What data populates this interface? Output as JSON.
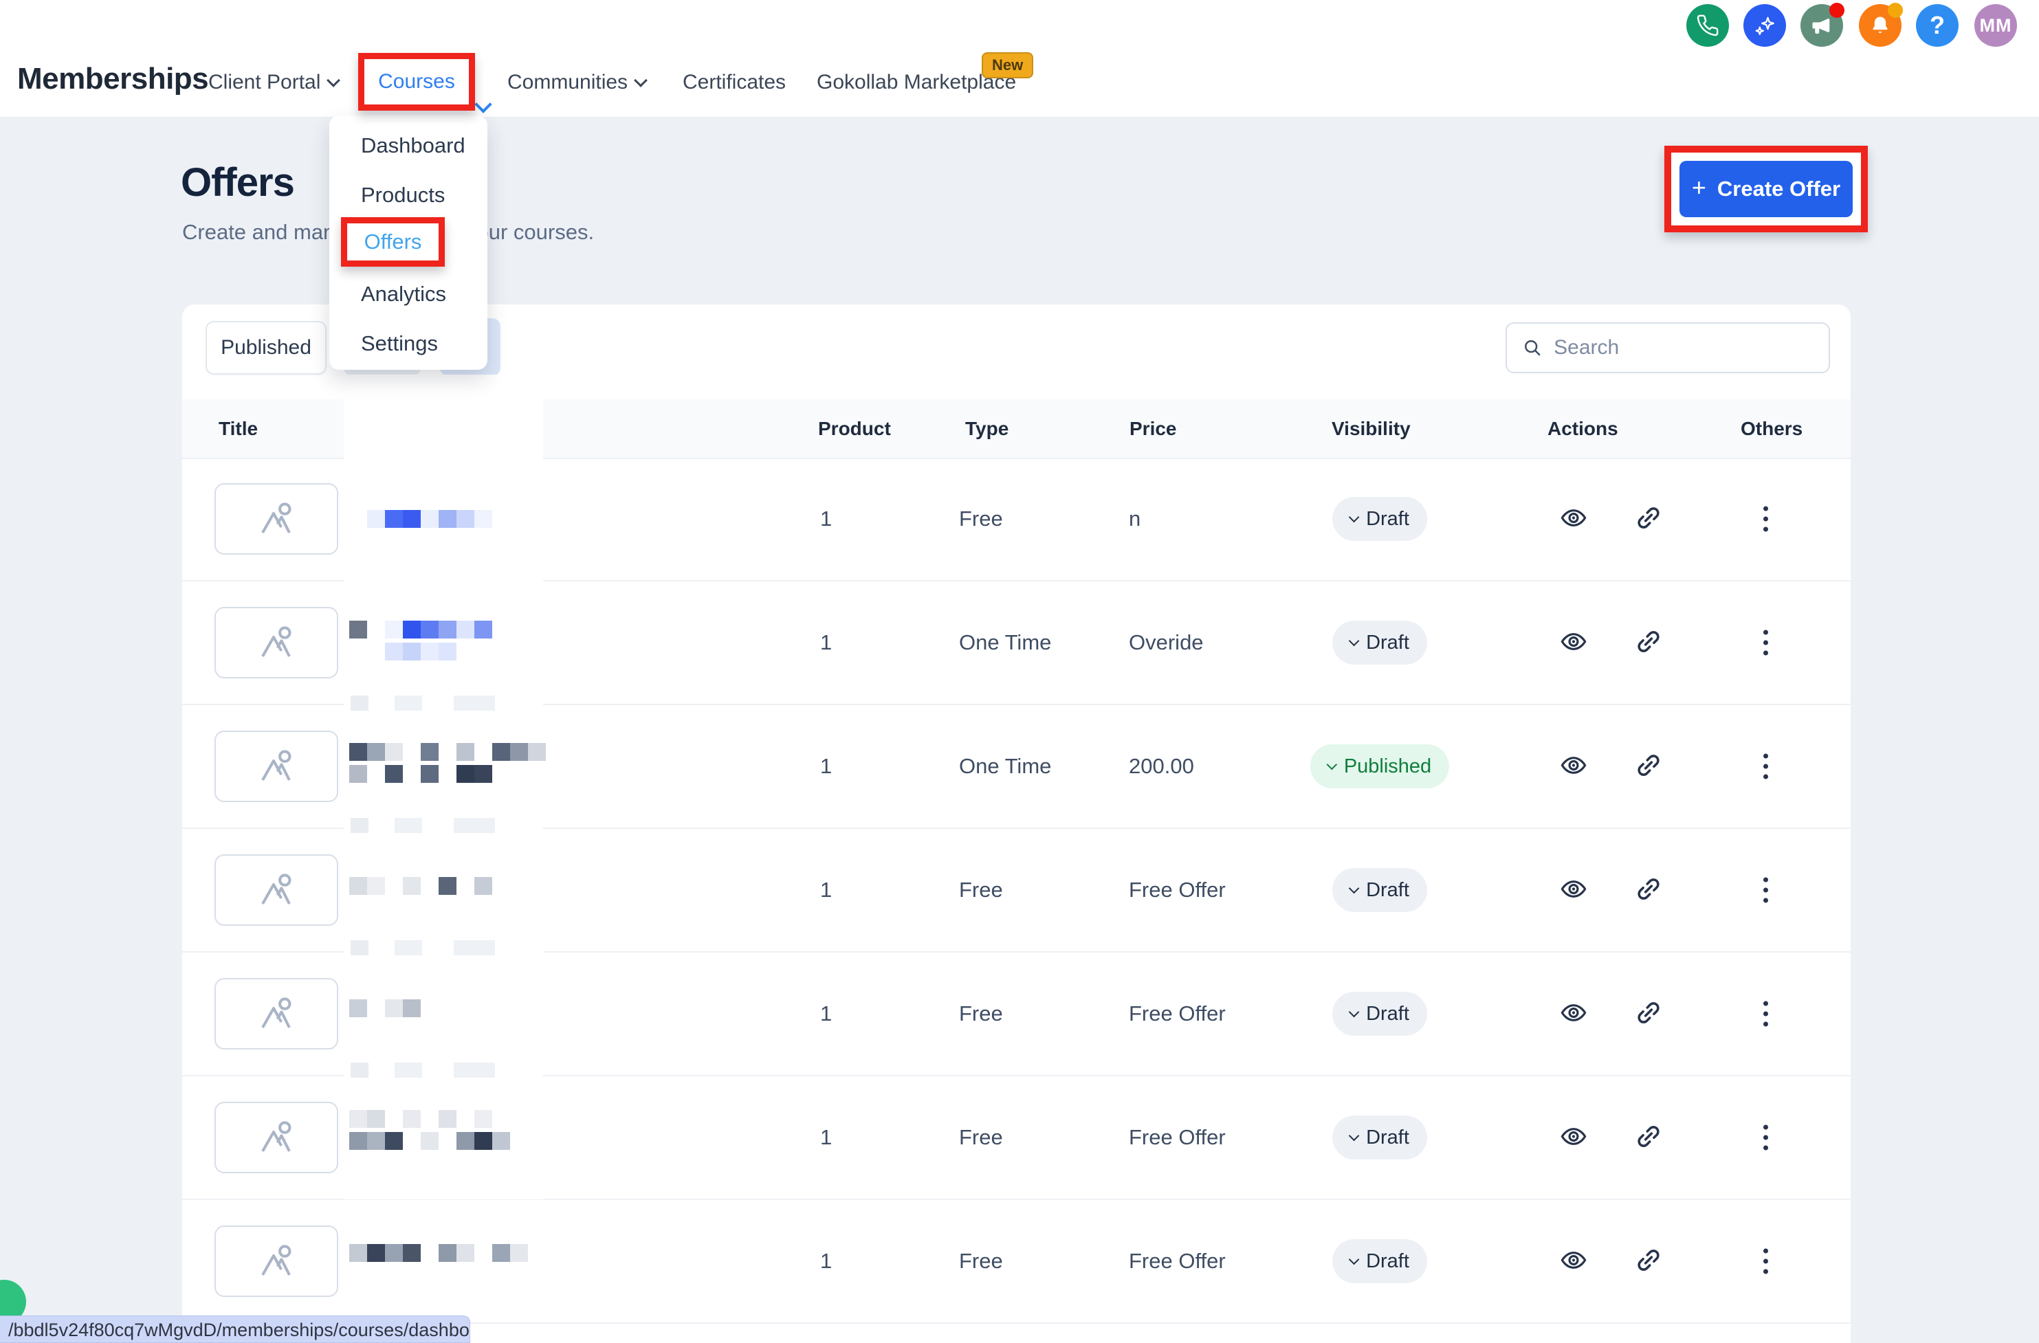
{
  "header": {
    "brand": "Memberships",
    "nav": {
      "client_portal": "Client Portal",
      "courses": "Courses",
      "communities": "Communities",
      "certificates": "Certificates",
      "marketplace": "Gokollab Marketplace",
      "new_badge": "New"
    },
    "account": {
      "help": "?",
      "initials": "MM"
    },
    "icon_colors": {
      "phone": "#129B6A",
      "sparkles": "#2A5CF1",
      "megaphone": "#60907C",
      "megaphone_dot": "#EF1007",
      "bell": "#F97C14",
      "bell_dot": "#F3A70B",
      "help": "#2F8DF2",
      "avatar": "#B688C0"
    }
  },
  "courses_menu": {
    "items": [
      "Dashboard",
      "Products",
      "Offers",
      "Analytics",
      "Settings"
    ],
    "active_item": "Offers"
  },
  "page": {
    "title": "Offers",
    "subtitle": "Create and manage offers for your courses."
  },
  "toolbar": {
    "plus": "+",
    "create_offer": "Create Offer",
    "filter_published": "Published",
    "search_placeholder": "Search"
  },
  "table": {
    "columns": [
      "Title",
      "Product",
      "Type",
      "Price",
      "Visibility",
      "Actions",
      "Others"
    ],
    "rows": [
      {
        "product": "1",
        "type": "Free",
        "price": "n",
        "visibility": "Draft",
        "status": "draft",
        "blur": [
          "_",
          "#e9effd",
          "#4a6cf5",
          "#3b5bf0",
          "#e9effd",
          "#9fb3f5",
          "#c9d5fa",
          "#eef3fe"
        ]
      },
      {
        "product": "1",
        "type": "One Time",
        "price": "Overide",
        "visibility": "Draft",
        "status": "draft",
        "blur": [
          "#6e7787",
          "_",
          "#eef3fe",
          "#2f55ee",
          "#5e7cf2",
          "#8fa5f4",
          "#dce5fd",
          "#7e96f3"
        ],
        "blur2": [
          "_",
          "_",
          "#dbe4fc",
          "#c7d4fa",
          "#e8eefe",
          "#dce5fd"
        ]
      },
      {
        "product": "1",
        "type": "One Time",
        "price": "200.00",
        "visibility": "Published",
        "status": "published",
        "blur": [
          "#49566c",
          "#9aa5b5",
          "#e4e7ec",
          "_",
          "#707d92",
          "_",
          "#bcc4d0",
          "_",
          "#57647a",
          "#8d97a8",
          "#d0d5de"
        ],
        "blur2": [
          "#b3bac6",
          "_",
          "#49566c",
          "_",
          "#5d6a80",
          "_",
          "#2f3c52",
          "#39445a",
          "_"
        ]
      },
      {
        "product": "1",
        "type": "Free",
        "price": "Free Offer",
        "visibility": "Draft",
        "status": "draft",
        "blur": [
          "#d8dce3",
          "#eceef2",
          "_",
          "#e3e6eb",
          "_",
          "#5a6578",
          "_",
          "#c6ccd6"
        ]
      },
      {
        "product": "1",
        "type": "Free",
        "price": "Free Offer",
        "visibility": "Draft",
        "status": "draft",
        "blur": [
          "#c9cfd8",
          "_",
          "#e4e7ec",
          "#b8bfcb"
        ]
      },
      {
        "product": "1",
        "type": "Free",
        "price": "Free Offer",
        "visibility": "Draft",
        "status": "draft",
        "blur": [
          "#e8eaef",
          "#d8dce3",
          "_",
          "#e8eaef",
          "_",
          "#dfe2e8",
          "_",
          "#eceef2"
        ],
        "blur2": [
          "#8e99a9",
          "#aab3c0",
          "#3e4a60",
          "_",
          "#e4e7ec",
          "_",
          "#8e99a9",
          "#2f3c52",
          "#c0c7d2"
        ]
      },
      {
        "product": "1",
        "type": "Free",
        "price": "Free Offer",
        "visibility": "Draft",
        "status": "draft",
        "blur": [
          "#c3cad4",
          "#39445a",
          "#97a2b2",
          "#4a5568",
          "_",
          "#8e99a9",
          "#dfe2e8",
          "_",
          "#9aa5b5",
          "#e4e7ec"
        ]
      }
    ]
  },
  "statusbar": {
    "url": "/bbdl5v24f80cq7wMgvdD/memberships/courses/dashbo..."
  },
  "colors": {
    "highlight_red": "#EE241D",
    "primary_blue": "#2361EB",
    "link_blue": "#2E7EF0",
    "menu_active_blue": "#41A4EC",
    "published_text": "#0F7E3C",
    "published_bg": "#E3F7EC",
    "draft_bg": "#EDF0F5",
    "new_badge_bg": "#F0A91D",
    "tooltip_bg": "#CDD8F9"
  }
}
